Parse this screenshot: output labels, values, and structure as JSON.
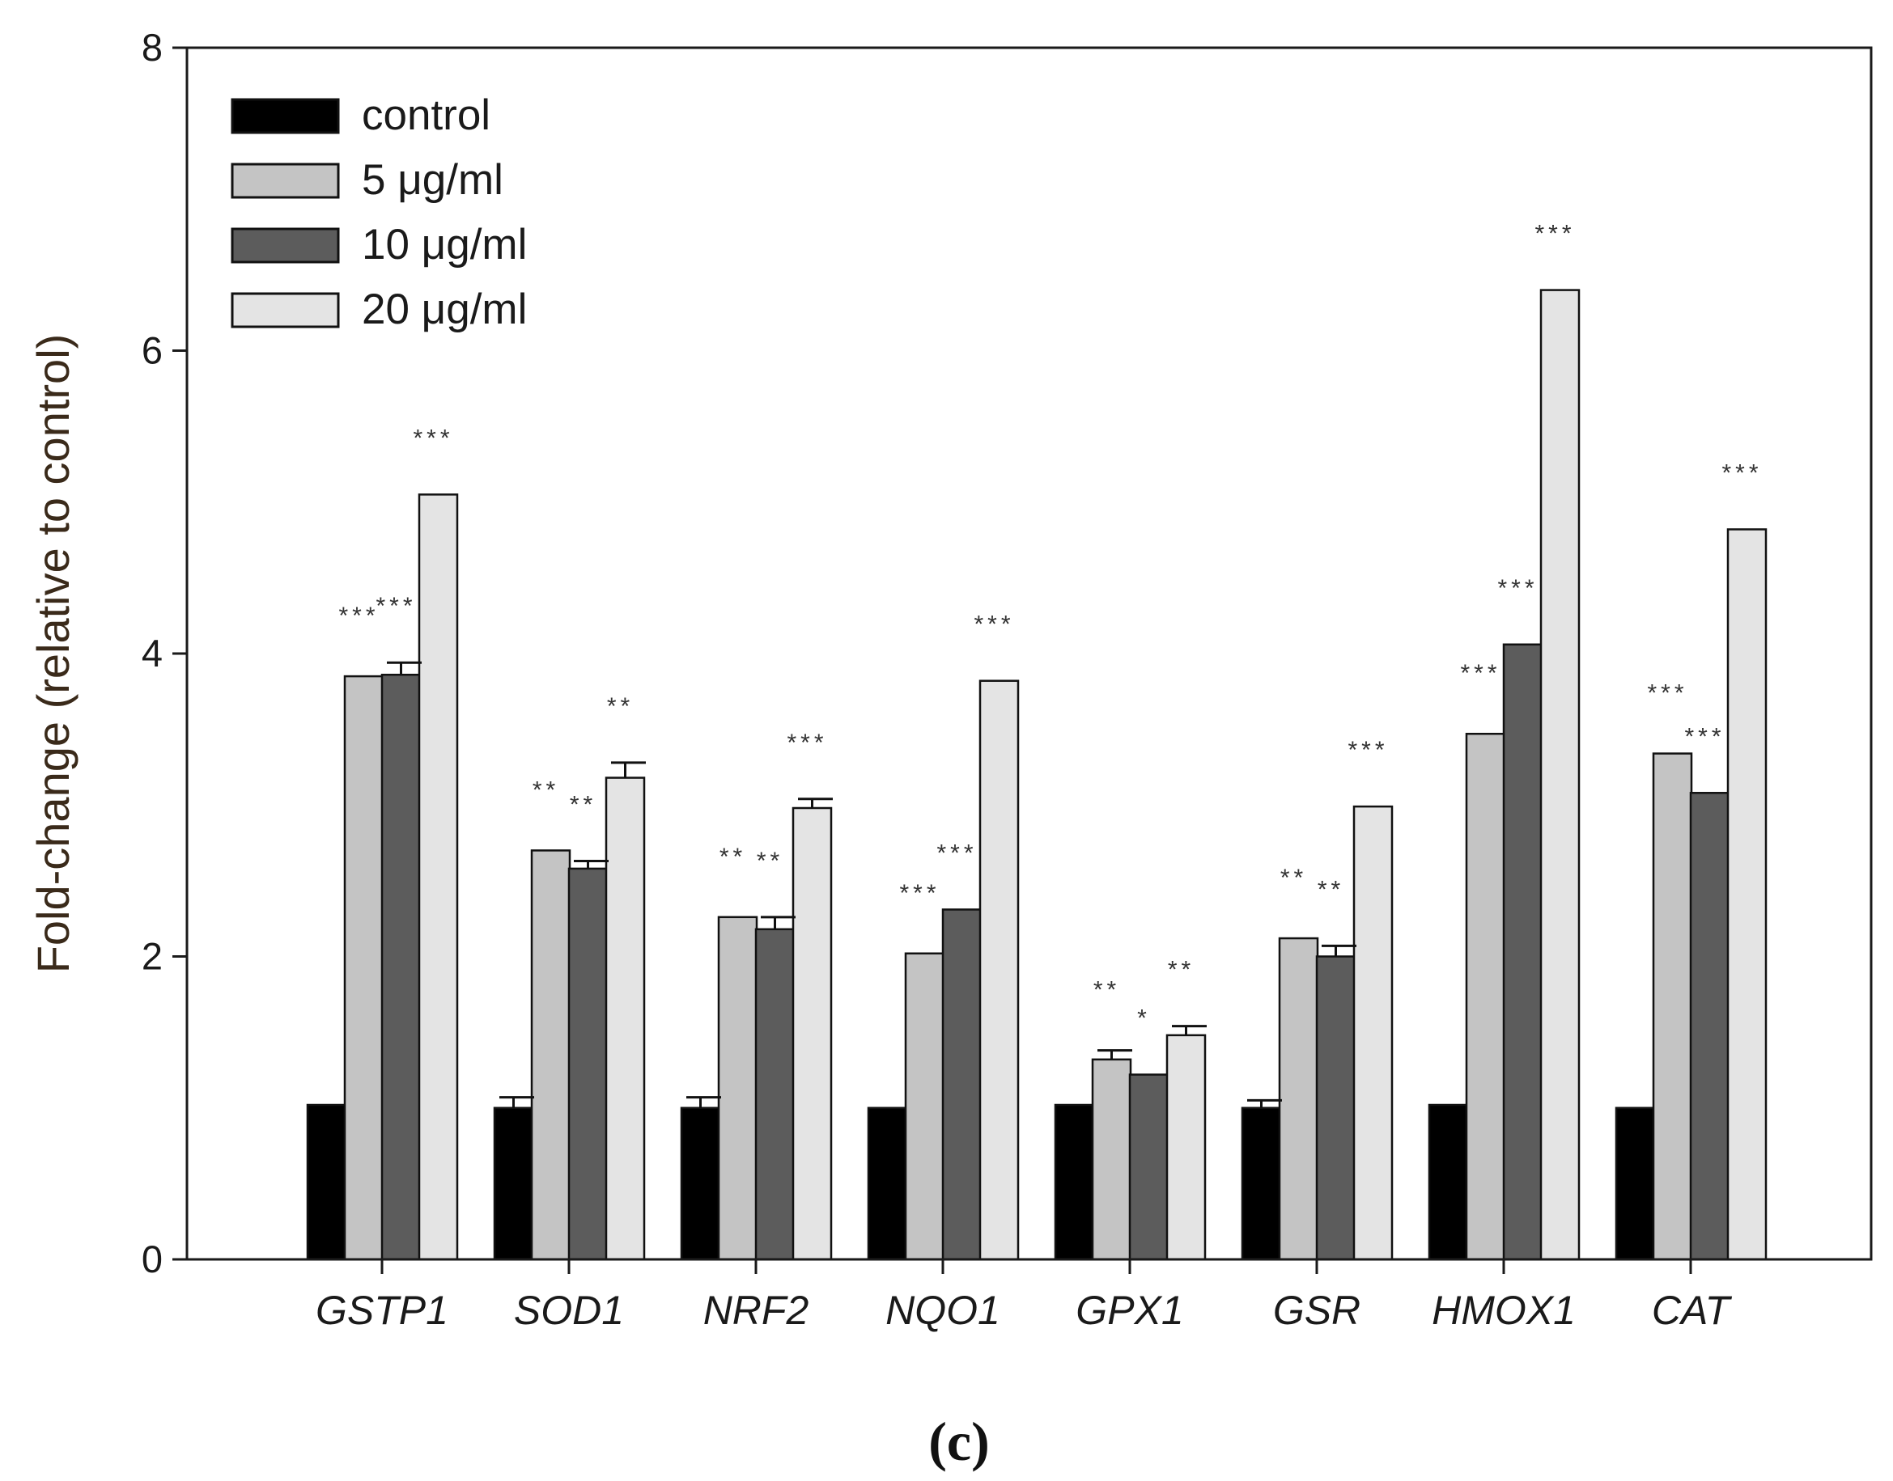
{
  "chart_data": {
    "type": "bar",
    "ylabel": "Fold-change (relative to control)",
    "xlabel": "",
    "ylim": [
      0,
      8
    ],
    "yticks": [
      0,
      2,
      4,
      6,
      8
    ],
    "panel_label": "(c)",
    "legend_position": "top-left",
    "categories": [
      "GSTP1",
      "SOD1",
      "NRF2",
      "NQO1",
      "GPX1",
      "GSR",
      "HMOX1",
      "CAT"
    ],
    "series": [
      {
        "name": "control",
        "color": "#000000",
        "values": [
          1.02,
          1.0,
          1.0,
          1.0,
          1.02,
          1.0,
          1.02,
          1.0
        ],
        "errors": [
          0.0,
          0.07,
          0.07,
          0.0,
          0.0,
          0.05,
          0.0,
          0.0
        ],
        "sig": [
          "",
          "",
          "",
          "",
          "",
          "",
          "",
          ""
        ]
      },
      {
        "name": "5 μg/ml",
        "color": "#c4c4c4",
        "values": [
          3.85,
          2.7,
          2.26,
          2.02,
          1.32,
          2.12,
          3.47,
          3.34
        ],
        "errors": [
          0.0,
          0.0,
          0.0,
          0.0,
          0.06,
          0.0,
          0.0,
          0.0
        ],
        "sig": [
          "***",
          "**",
          "**",
          "***",
          "**",
          "**",
          "***",
          "***"
        ]
      },
      {
        "name": "10 μg/ml",
        "color": "#5c5c5c",
        "values": [
          3.86,
          2.58,
          2.18,
          2.31,
          1.22,
          2.0,
          4.06,
          3.08
        ],
        "errors": [
          0.08,
          0.05,
          0.08,
          0.0,
          0.0,
          0.07,
          0.0,
          0.0
        ],
        "sig": [
          "***",
          "**",
          "**",
          "***",
          "*",
          "**",
          "***",
          "***"
        ]
      },
      {
        "name": "20 μg/ml",
        "color": "#e4e4e4",
        "values": [
          5.05,
          3.18,
          2.98,
          3.82,
          1.48,
          2.99,
          6.4,
          4.82
        ],
        "errors": [
          0.0,
          0.1,
          0.06,
          0.0,
          0.06,
          0.0,
          0.0,
          0.0
        ],
        "sig": [
          "***",
          "**",
          "***",
          "***",
          "**",
          "***",
          "***",
          "***"
        ]
      }
    ]
  }
}
